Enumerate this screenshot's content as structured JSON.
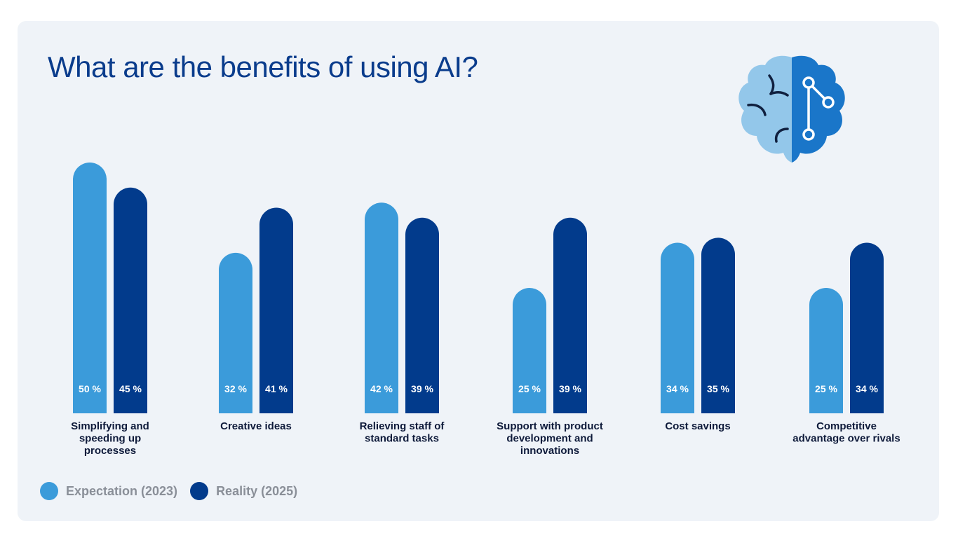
{
  "page": {
    "title": "What are the benefits of using AI?"
  },
  "colors": {
    "expectation": "#3b9bda",
    "reality": "#023b8c",
    "title": "#0a3c8c",
    "background": "#eff3f8",
    "category_text": "#0e1a3a",
    "legend_text": "#8a8f98"
  },
  "legend": [
    {
      "label": "Expectation (2023)",
      "color": "#3b9bda"
    },
    {
      "label": "Reality (2025)",
      "color": "#023b8c"
    }
  ],
  "icons": {
    "header": "brain-network-icon"
  },
  "chart_data": {
    "type": "bar",
    "title": "What are the benefits of using AI?",
    "xlabel": "",
    "ylabel": "",
    "ylim": [
      0,
      50
    ],
    "categories": [
      [
        "Simplifying and",
        "speeding up",
        "processes"
      ],
      [
        "Creative ideas"
      ],
      [
        "Relieving staff of",
        "standard tasks"
      ],
      [
        "Support with product",
        "development and",
        "innovations"
      ],
      [
        "Cost savings"
      ],
      [
        "Competitive",
        "advantage over rivals"
      ]
    ],
    "series": [
      {
        "name": "Expectation (2023)",
        "values": [
          50,
          32,
          42,
          25,
          34,
          25
        ],
        "labels": [
          "50 %",
          "32 %",
          "42 %",
          "25 %",
          "34 %",
          "25 %"
        ]
      },
      {
        "name": "Reality (2025)",
        "values": [
          45,
          41,
          39,
          39,
          35,
          34
        ],
        "labels": [
          "45 %",
          "41 %",
          "39 %",
          "39 %",
          "35 %",
          "34 %"
        ]
      }
    ],
    "legend_position": "bottom-left",
    "grid": false
  }
}
